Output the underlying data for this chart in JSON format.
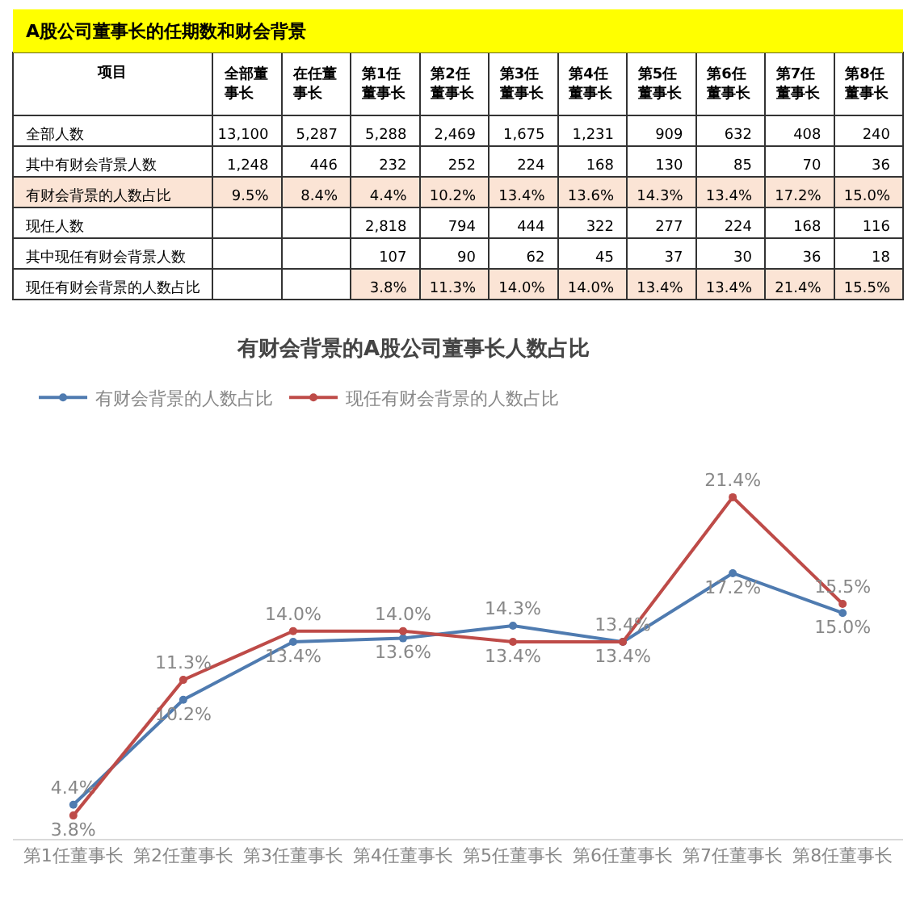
{
  "chart_data": [
    {
      "type": "other",
      "title": "A股公司董事长的任期数和财会背景",
      "color": "#ffff00",
      "ylabel": "项目",
      "categories": [
        "全部董事长",
        "在任董事长",
        "第1任董事长",
        "第2任董事长",
        "第3任董事长",
        "第4任董事长",
        "第5任董事长",
        "第6任董事长",
        "第7任董事长",
        "第8任董事长"
      ],
      "y_categories": [
        "全部人数",
        "其中有财会背景人数",
        "有财会背景的人数占比",
        "现任人数",
        "其中现任有财会背景人数",
        "现任有财会背景的人数占比"
      ],
      "cell_labels": [
        [
          "13,100",
          "5,287",
          "5,288",
          "2,469",
          "1,675",
          "1,231",
          "909",
          "632",
          "408",
          "240"
        ],
        [
          "1,248",
          "446",
          "232",
          "252",
          "224",
          "168",
          "130",
          "85",
          "70",
          "36"
        ],
        [
          "9.5%",
          "8.4%",
          "4.4%",
          "10.2%",
          "13.4%",
          "13.6%",
          "14.3%",
          "13.4%",
          "17.2%",
          "15.0%"
        ],
        [
          null,
          null,
          "2,818",
          "794",
          "444",
          "322",
          "277",
          "224",
          "168",
          "116"
        ],
        [
          null,
          null,
          "107",
          "90",
          "62",
          "45",
          "37",
          "30",
          "36",
          "18"
        ],
        [
          null,
          null,
          "3.8%",
          "11.3%",
          "14.0%",
          "14.0%",
          "13.4%",
          "13.4%",
          "21.4%",
          "15.5%"
        ]
      ],
      "colors": [
        [
          "#ffffff",
          "#ffffff",
          "#ffffff",
          "#ffffff",
          "#ffffff",
          "#ffffff",
          "#ffffff",
          "#ffffff",
          "#ffffff",
          "#ffffff"
        ],
        [
          "#ffffff",
          "#ffffff",
          "#ffffff",
          "#ffffff",
          "#ffffff",
          "#ffffff",
          "#ffffff",
          "#ffffff",
          "#ffffff",
          "#ffffff"
        ],
        [
          "#fbe4d5",
          "#fbe4d5",
          "#fbe4d5",
          "#fbe4d5",
          "#fbe4d5",
          "#fbe4d5",
          "#fbe4d5",
          "#fbe4d5",
          "#fbe4d5",
          "#fbe4d5"
        ],
        [
          "#ffffff",
          "#ffffff",
          "#ffffff",
          "#ffffff",
          "#ffffff",
          "#ffffff",
          "#ffffff",
          "#ffffff",
          "#ffffff",
          "#ffffff"
        ],
        [
          "#ffffff",
          "#ffffff",
          "#ffffff",
          "#ffffff",
          "#ffffff",
          "#ffffff",
          "#ffffff",
          "#ffffff",
          "#ffffff",
          "#ffffff"
        ],
        [
          "#ffffff",
          "#ffffff",
          "#fbe4d5",
          "#fbe4d5",
          "#fbe4d5",
          "#fbe4d5",
          "#fbe4d5",
          "#fbe4d5",
          "#fbe4d5",
          "#fbe4d5"
        ]
      ]
    },
    {
      "type": "line",
      "title": "有财会背景的A股公司董事长人数占比",
      "legend": "top left",
      "marker": "circle",
      "categories": [
        "第1任董事长",
        "第2任董事长",
        "第3任董事长",
        "第4任董事长",
        "第5任董事长",
        "第6任董事长",
        "第7任董事长",
        "第8任董事长"
      ],
      "series": [
        {
          "name": "有财会背景的人数占比",
          "color": "#4f7bb0",
          "values": [
            4.4,
            10.2,
            13.4,
            13.6,
            14.3,
            13.4,
            17.2,
            15.0
          ],
          "value_labels": [
            "4.4%",
            "10.2%",
            "13.4%",
            "13.6%",
            "14.3%",
            "13.4%",
            "17.2%",
            "15.0%"
          ]
        },
        {
          "name": "现任有财会背景的人数占比",
          "color": "#be4b48",
          "values": [
            3.8,
            11.3,
            14.0,
            14.0,
            13.4,
            13.4,
            21.4,
            15.5
          ],
          "value_labels": [
            "3.8%",
            "11.3%",
            "14.0%",
            "14.0%",
            "13.4%",
            "13.4%",
            "21.4%",
            "15.5%"
          ]
        }
      ]
    }
  ]
}
